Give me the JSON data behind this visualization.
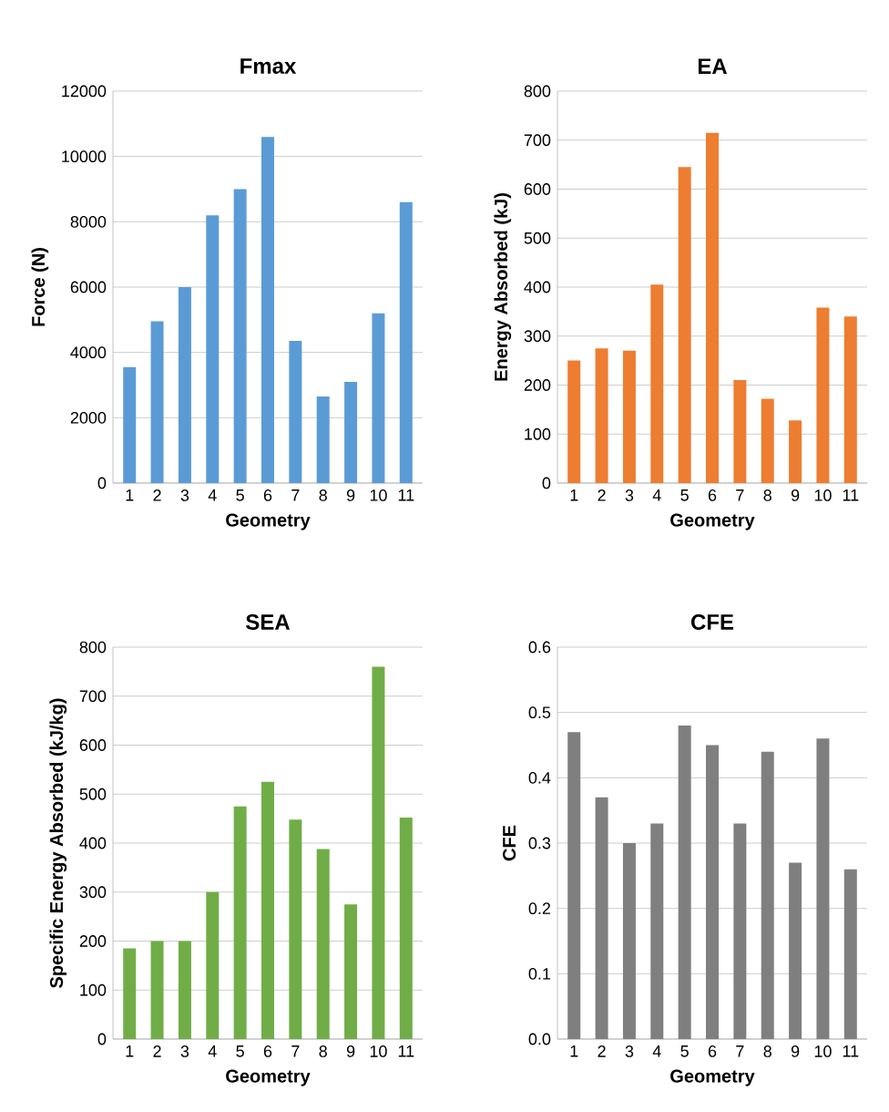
{
  "chart_data": [
    {
      "type": "bar",
      "title": "Fmax",
      "xlabel": "Geometry",
      "ylabel": "Force (N)",
      "categories": [
        "1",
        "2",
        "3",
        "4",
        "5",
        "6",
        "7",
        "8",
        "9",
        "10",
        "11"
      ],
      "values": [
        3550,
        4950,
        6000,
        8200,
        9000,
        10600,
        4350,
        2650,
        3100,
        5200,
        8600
      ],
      "color": "#5b9bd5",
      "ylim": [
        0,
        12000
      ],
      "yticks": [
        0,
        2000,
        4000,
        6000,
        8000,
        10000,
        12000
      ],
      "grid": "y"
    },
    {
      "type": "bar",
      "title": "EA",
      "xlabel": "Geometry",
      "ylabel": "Energy Absorbed (kJ)",
      "categories": [
        "1",
        "2",
        "3",
        "4",
        "5",
        "6",
        "7",
        "8",
        "9",
        "10",
        "11"
      ],
      "values": [
        250,
        275,
        270,
        405,
        645,
        715,
        210,
        172,
        128,
        358,
        340
      ],
      "color": "#ed7d31",
      "ylim": [
        0,
        800
      ],
      "yticks": [
        0,
        100,
        200,
        300,
        400,
        500,
        600,
        700,
        800
      ],
      "grid": "y"
    },
    {
      "type": "bar",
      "title": "SEA",
      "xlabel": "Geometry",
      "ylabel": "Specific Energy Absorbed (kJ/kg)",
      "categories": [
        "1",
        "2",
        "3",
        "4",
        "5",
        "6",
        "7",
        "8",
        "9",
        "10",
        "11"
      ],
      "values": [
        185,
        200,
        200,
        300,
        475,
        525,
        448,
        388,
        275,
        760,
        452
      ],
      "color": "#70ad47",
      "ylim": [
        0,
        800
      ],
      "yticks": [
        0,
        100,
        200,
        300,
        400,
        500,
        600,
        700,
        800
      ],
      "grid": "y"
    },
    {
      "type": "bar",
      "title": "CFE",
      "xlabel": "Geometry",
      "ylabel": "CFE",
      "categories": [
        "1",
        "2",
        "3",
        "4",
        "5",
        "6",
        "7",
        "8",
        "9",
        "10",
        "11"
      ],
      "values": [
        0.47,
        0.37,
        0.3,
        0.33,
        0.48,
        0.45,
        0.33,
        0.44,
        0.27,
        0.46,
        0.26
      ],
      "color": "#7f7f7f",
      "ylim": [
        0,
        0.6
      ],
      "yticks": [
        {
          "value": 0,
          "label": "0.0"
        },
        0.1,
        0.2,
        0.3,
        0.4,
        0.5,
        0.6
      ],
      "grid": "y"
    }
  ]
}
